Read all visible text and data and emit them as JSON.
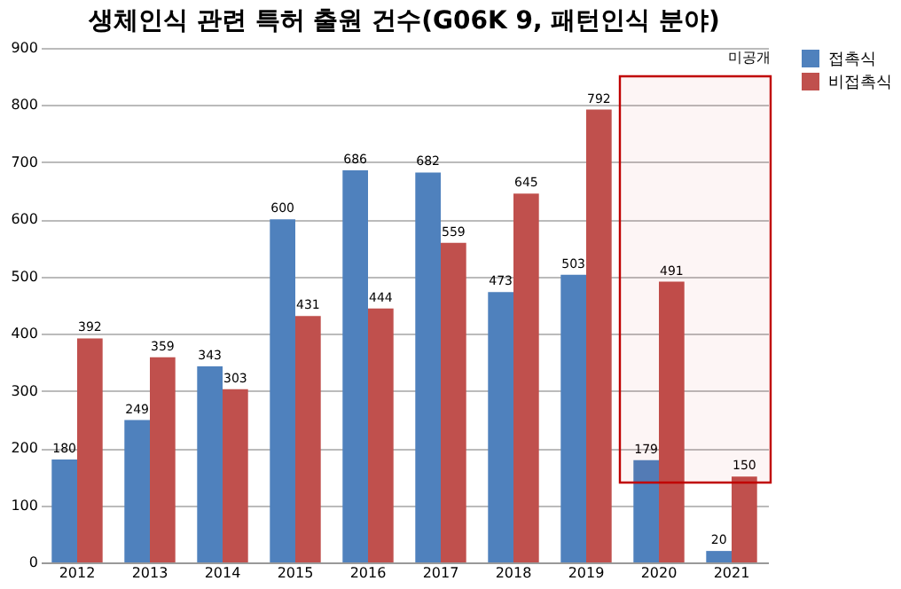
{
  "chart_data": {
    "type": "bar",
    "title": "생체인식 관련 특허 출원 건수(G06K 9, 패턴인식 분야)",
    "categories": [
      "2012",
      "2013",
      "2014",
      "2015",
      "2016",
      "2017",
      "2018",
      "2019",
      "2020",
      "2021"
    ],
    "series": [
      {
        "name": "접촉식",
        "color": "#4f81bd",
        "values": [
          180,
          249,
          343,
          600,
          686,
          682,
          473,
          503,
          179,
          20
        ]
      },
      {
        "name": "비접촉식",
        "color": "#c0504d",
        "values": [
          392,
          359,
          303,
          431,
          444,
          559,
          645,
          792,
          491,
          150
        ]
      }
    ],
    "ylim": [
      0,
      900
    ],
    "yticks": [
      0,
      100,
      200,
      300,
      400,
      500,
      600,
      700,
      800,
      900
    ],
    "grid": "y",
    "legend": "right",
    "data_labels": true,
    "bands": [
      {
        "axis": "x",
        "from": "2020",
        "to": "2021",
        "label": "미공개",
        "color": "#c00000"
      }
    ]
  }
}
